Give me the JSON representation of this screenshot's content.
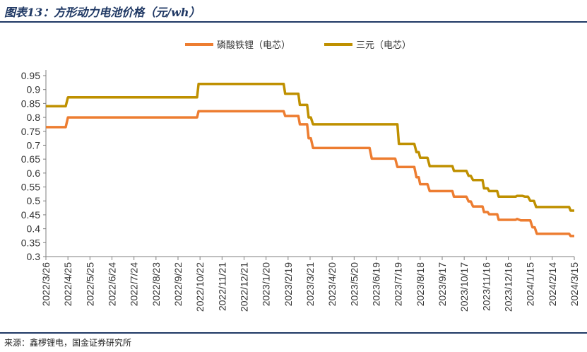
{
  "figure": {
    "title": "图表13：方形动力电池价格（元/wh）",
    "source": "来源：鑫椤锂电，国金证券研究所"
  },
  "colors": {
    "title": "#1f3864",
    "series_lfp": "#ed7d31",
    "series_ncm": "#bf9000",
    "axis": "#7f7f7f"
  },
  "chart_data": {
    "type": "line",
    "title": "",
    "xlabel": "",
    "ylabel": "",
    "ylim": [
      0.3,
      0.95
    ],
    "yticks": [
      "0.95",
      "0.9",
      "0.85",
      "0.8",
      "0.75",
      "0.7",
      "0.65",
      "0.6",
      "0.55",
      "0.5",
      "0.45",
      "0.4",
      "0.35",
      "0.3"
    ],
    "x_tick_labels": [
      "2022/3/26",
      "2022/4/25",
      "2022/5/25",
      "2022/6/24",
      "2022/7/24",
      "2022/8/23",
      "2022/9/22",
      "2022/10/22",
      "2022/11/21",
      "2022/12/21",
      "2023/1/20",
      "2023/2/19",
      "2023/3/21",
      "2023/4/20",
      "2023/5/20",
      "2023/6/19",
      "2023/7/19",
      "2023/8/18",
      "2023/9/17",
      "2023/10/17",
      "2023/11/16",
      "2023/12/16",
      "2024/1/15",
      "2024/2/14",
      "2024/3/15"
    ],
    "grid": false,
    "legend_position": "top",
    "series": [
      {
        "name": "磷酸铁锂（电芯）",
        "points": [
          [
            "2022-03-26",
            0.765
          ],
          [
            "2022-04-22",
            0.765
          ],
          [
            "2022-04-25",
            0.8
          ],
          [
            "2022-10-18",
            0.8
          ],
          [
            "2022-10-20",
            0.822
          ],
          [
            "2023-02-13",
            0.822
          ],
          [
            "2023-02-15",
            0.805
          ],
          [
            "2023-03-05",
            0.805
          ],
          [
            "2023-03-07",
            0.775
          ],
          [
            "2023-03-17",
            0.775
          ],
          [
            "2023-03-19",
            0.725
          ],
          [
            "2023-03-22",
            0.725
          ],
          [
            "2023-03-25",
            0.69
          ],
          [
            "2023-06-10",
            0.69
          ],
          [
            "2023-06-13",
            0.652
          ],
          [
            "2023-07-15",
            0.652
          ],
          [
            "2023-07-18",
            0.622
          ],
          [
            "2023-08-10",
            0.622
          ],
          [
            "2023-08-13",
            0.585
          ],
          [
            "2023-08-16",
            0.585
          ],
          [
            "2023-08-18",
            0.56
          ],
          [
            "2023-08-28",
            0.56
          ],
          [
            "2023-08-31",
            0.535
          ],
          [
            "2023-10-01",
            0.535
          ],
          [
            "2023-10-03",
            0.515
          ],
          [
            "2023-10-20",
            0.515
          ],
          [
            "2023-10-23",
            0.498
          ],
          [
            "2023-10-26",
            0.498
          ],
          [
            "2023-10-29",
            0.48
          ],
          [
            "2023-11-11",
            0.48
          ],
          [
            "2023-11-13",
            0.46
          ],
          [
            "2023-11-18",
            0.46
          ],
          [
            "2023-11-20",
            0.452
          ],
          [
            "2023-12-01",
            0.452
          ],
          [
            "2023-12-03",
            0.432
          ],
          [
            "2023-12-26",
            0.432
          ],
          [
            "2023-12-28",
            0.435
          ],
          [
            "2024-01-02",
            0.43
          ],
          [
            "2024-01-15",
            0.43
          ],
          [
            "2024-01-18",
            0.405
          ],
          [
            "2024-01-21",
            0.405
          ],
          [
            "2024-01-24",
            0.382
          ],
          [
            "2024-03-08",
            0.382
          ],
          [
            "2024-03-10",
            0.374
          ],
          [
            "2024-03-15",
            0.374
          ]
        ]
      },
      {
        "name": "三元（电芯）",
        "points": [
          [
            "2022-03-26",
            0.84
          ],
          [
            "2022-04-22",
            0.84
          ],
          [
            "2022-04-25",
            0.872
          ],
          [
            "2022-10-18",
            0.872
          ],
          [
            "2022-10-20",
            0.92
          ],
          [
            "2023-02-13",
            0.92
          ],
          [
            "2023-02-15",
            0.885
          ],
          [
            "2023-03-05",
            0.885
          ],
          [
            "2023-03-07",
            0.845
          ],
          [
            "2023-03-17",
            0.845
          ],
          [
            "2023-03-19",
            0.8
          ],
          [
            "2023-03-22",
            0.8
          ],
          [
            "2023-03-25",
            0.775
          ],
          [
            "2023-07-18",
            0.775
          ],
          [
            "2023-07-20",
            0.705
          ],
          [
            "2023-08-10",
            0.705
          ],
          [
            "2023-08-13",
            0.675
          ],
          [
            "2023-08-16",
            0.675
          ],
          [
            "2023-08-18",
            0.655
          ],
          [
            "2023-08-28",
            0.655
          ],
          [
            "2023-08-31",
            0.625
          ],
          [
            "2023-10-01",
            0.625
          ],
          [
            "2023-10-03",
            0.608
          ],
          [
            "2023-10-20",
            0.608
          ],
          [
            "2023-10-23",
            0.59
          ],
          [
            "2023-10-26",
            0.59
          ],
          [
            "2023-10-29",
            0.575
          ],
          [
            "2023-11-11",
            0.575
          ],
          [
            "2023-11-13",
            0.545
          ],
          [
            "2023-11-18",
            0.545
          ],
          [
            "2023-11-20",
            0.535
          ],
          [
            "2023-12-01",
            0.535
          ],
          [
            "2023-12-03",
            0.515
          ],
          [
            "2023-12-26",
            0.515
          ],
          [
            "2023-12-28",
            0.518
          ],
          [
            "2024-01-04",
            0.518
          ],
          [
            "2024-01-08",
            0.515
          ],
          [
            "2024-01-12",
            0.515
          ],
          [
            "2024-01-15",
            0.5
          ],
          [
            "2024-01-20",
            0.5
          ],
          [
            "2024-01-23",
            0.478
          ],
          [
            "2024-03-08",
            0.478
          ],
          [
            "2024-03-10",
            0.465
          ],
          [
            "2024-03-15",
            0.465
          ]
        ]
      }
    ]
  }
}
